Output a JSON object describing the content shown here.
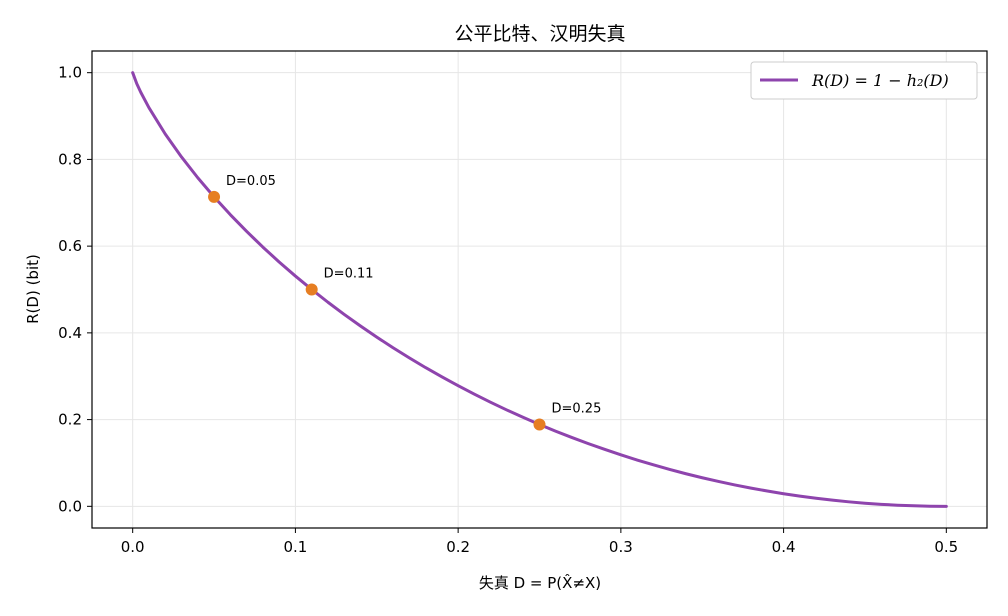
{
  "chart_data": {
    "type": "line",
    "title": "公平比特、汉明失真",
    "xlabel": "失真 D = P(X̂≠X)",
    "ylabel": "R(D) (bit)",
    "xlim": [
      -0.025,
      0.525
    ],
    "ylim": [
      -0.05,
      1.05
    ],
    "x_ticks": [
      0.0,
      0.1,
      0.2,
      0.3,
      0.4,
      0.5
    ],
    "x_tick_labels": [
      "0.0",
      "0.1",
      "0.2",
      "0.3",
      "0.4",
      "0.5"
    ],
    "y_ticks": [
      0.0,
      0.2,
      0.4,
      0.6,
      0.8,
      1.0
    ],
    "y_tick_labels": [
      "0.0",
      "0.2",
      "0.4",
      "0.6",
      "0.8",
      "1.0"
    ],
    "grid": true,
    "legend_position": "top-right",
    "series": [
      {
        "name": "R(D) = 1 − h₂(D)",
        "color": "#8e44ad",
        "x": [
          0.0,
          0.0025,
          0.005,
          0.01,
          0.02,
          0.03,
          0.04,
          0.05,
          0.06,
          0.07,
          0.08,
          0.09,
          0.1,
          0.11,
          0.12,
          0.13,
          0.14,
          0.15,
          0.16,
          0.17,
          0.18,
          0.19,
          0.2,
          0.21,
          0.22,
          0.23,
          0.24,
          0.25,
          0.26,
          0.27,
          0.28,
          0.29,
          0.3,
          0.31,
          0.32,
          0.33,
          0.34,
          0.35,
          0.36,
          0.37,
          0.38,
          0.39,
          0.4,
          0.41,
          0.42,
          0.43,
          0.44,
          0.45,
          0.46,
          0.47,
          0.48,
          0.49,
          0.5
        ],
        "y": [
          1.0,
          0.9747,
          0.9546,
          0.9192,
          0.8586,
          0.8056,
          0.7577,
          0.7136,
          0.6726,
          0.6341,
          0.5978,
          0.5635,
          0.531,
          0.5001,
          0.4706,
          0.4426,
          0.4158,
          0.3902,
          0.3657,
          0.3424,
          0.3199,
          0.2986,
          0.2781,
          0.2585,
          0.2398,
          0.222,
          0.205,
          0.1887,
          0.1732,
          0.1586,
          0.1446,
          0.1314,
          0.1187,
          0.1068,
          0.0956,
          0.085,
          0.0751,
          0.0659,
          0.0573,
          0.0493,
          0.042,
          0.0353,
          0.029,
          0.0235,
          0.0186,
          0.0142,
          0.0104,
          0.0072,
          0.0046,
          0.0026,
          0.0012,
          0.0003,
          0.0
        ]
      }
    ],
    "markers": [
      {
        "x": 0.05,
        "y": 0.7136,
        "label": "D=0.05",
        "color": "#e67e22"
      },
      {
        "x": 0.11,
        "y": 0.5001,
        "label": "D=0.11",
        "color": "#e67e22"
      },
      {
        "x": 0.25,
        "y": 0.1887,
        "label": "D=0.25",
        "color": "#e67e22"
      }
    ]
  }
}
